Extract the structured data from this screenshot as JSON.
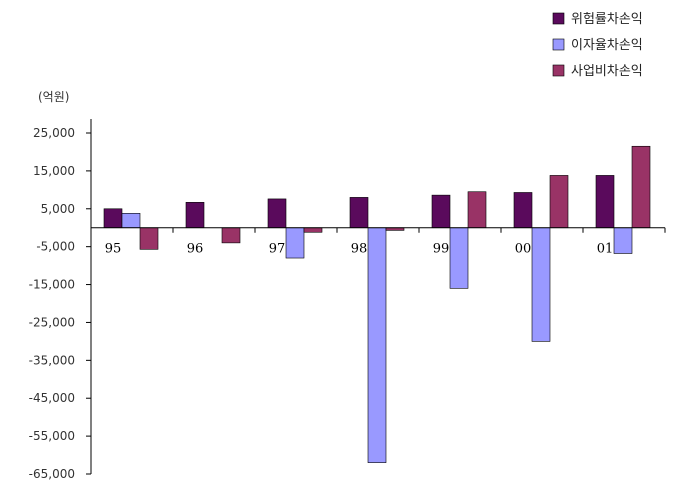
{
  "chart_data": {
    "type": "bar",
    "unit_label": "(억원)",
    "categories": [
      "95",
      "96",
      "97",
      "98",
      "99",
      "00",
      "01"
    ],
    "series": [
      {
        "name": "위험률차손익",
        "color": "#5a0a5c",
        "values": [
          5000,
          6700,
          7600,
          8000,
          8600,
          9300,
          13800
        ]
      },
      {
        "name": "이자율차손익",
        "color": "#9999ff",
        "values": [
          3800,
          0,
          -8000,
          -62000,
          -16000,
          -30000,
          -6800
        ]
      },
      {
        "name": "사업비차손익",
        "color": "#993366",
        "values": [
          -5700,
          -4000,
          -1200,
          -700,
          9500,
          13800,
          21500
        ]
      }
    ],
    "y_ticks": [
      "25,000",
      "15,000",
      "5,000",
      "-5,000",
      "-15,000",
      "-25,000",
      "-35,000",
      "-45,000",
      "-55,000",
      "-65,000"
    ],
    "y_tick_values": [
      25000,
      15000,
      5000,
      -5000,
      -15000,
      -25000,
      -35000,
      -45000,
      -55000,
      -65000
    ],
    "ylim": [
      -65000,
      25000
    ],
    "grid": false,
    "legend_position": "top-right"
  }
}
